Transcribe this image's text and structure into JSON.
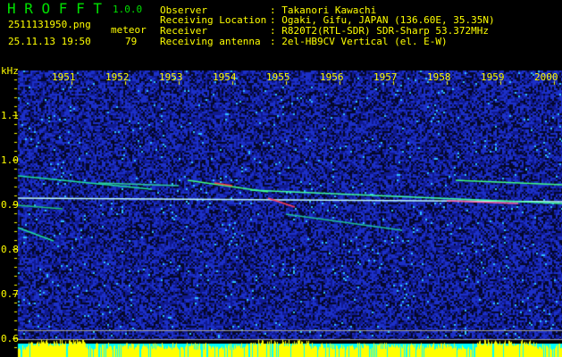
{
  "header": {
    "app_title": "H R O F F T",
    "version": "1.0.0",
    "filename": "2511131950.png",
    "datetime": "25.11.13 19:50",
    "count_label": "meteor",
    "count_value": "79",
    "info": [
      {
        "label": "Observer",
        "value": ": Takanori Kawachi"
      },
      {
        "label": "Receiving Location",
        "value": ": Ogaki, Gifu, JAPAN (136.60E, 35.35N)"
      },
      {
        "label": "Receiver",
        "value": ": R820T2(RTL-SDR) SDR-Sharp 53.372MHz"
      },
      {
        "label": "Receiving antenna",
        "value": ": 2el-HB9CV Vertical (el. E-W)"
      }
    ]
  },
  "spectrogram": {
    "y_unit": "kHz",
    "y_ticks": [
      "1.1",
      "1.0",
      "0.9",
      "0.8",
      "0.7",
      "0.6"
    ],
    "time_ticks": [
      "1951",
      "1952",
      "1953",
      "1954",
      "1955",
      "1956",
      "1957",
      "1958",
      "1959",
      "2000"
    ],
    "colors": {
      "background": "#000000",
      "noise": "#1a2aa0",
      "text": "#ffff00",
      "title": "#00e000",
      "level_bar": "#ffff00",
      "level_bg": "#00ffff"
    }
  }
}
